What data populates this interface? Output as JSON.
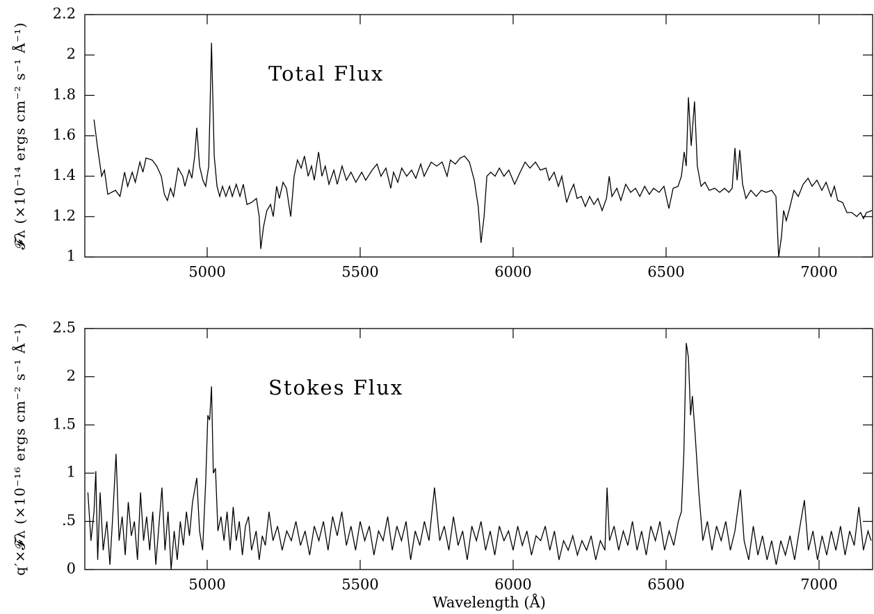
{
  "chart_data": [
    {
      "type": "line",
      "annotation": "Total Flux",
      "ylabel": "𝓕λ (×10⁻¹⁴ ergs cm⁻² s⁻¹ Å⁻¹)",
      "xlim": [
        4600,
        7175
      ],
      "xticks": [
        5000,
        5500,
        6000,
        6500,
        7000
      ],
      "ylim": [
        1,
        2.2
      ],
      "yticks": [
        1,
        1.2,
        1.4,
        1.6,
        1.8,
        2,
        2.2
      ],
      "color": "#000000",
      "x": [
        4630,
        4641,
        4655,
        4664,
        4675,
        4700,
        4715,
        4730,
        4740,
        4755,
        4765,
        4780,
        4790,
        4800,
        4820,
        4835,
        4850,
        4860,
        4870,
        4880,
        4890,
        4905,
        4920,
        4927,
        4941,
        4950,
        4959,
        4966,
        4975,
        4986,
        4995,
        5005,
        5014,
        5023,
        5032,
        5041,
        5050,
        5061,
        5073,
        5082,
        5095,
        5107,
        5118,
        5130,
        5145,
        5161,
        5170,
        5175,
        5184,
        5195,
        5207,
        5216,
        5227,
        5236,
        5248,
        5259,
        5273,
        5284,
        5295,
        5307,
        5318,
        5330,
        5341,
        5350,
        5364,
        5375,
        5386,
        5398,
        5414,
        5425,
        5441,
        5455,
        5470,
        5486,
        5505,
        5518,
        5539,
        5555,
        5568,
        5584,
        5600,
        5609,
        5623,
        5636,
        5652,
        5668,
        5682,
        5698,
        5709,
        5732,
        5750,
        5768,
        5784,
        5795,
        5811,
        5827,
        5841,
        5857,
        5873,
        5886,
        5895,
        5905,
        5914,
        5927,
        5941,
        5955,
        5970,
        5986,
        6005,
        6023,
        6039,
        6055,
        6073,
        6089,
        6107,
        6118,
        6134,
        6148,
        6159,
        6175,
        6186,
        6198,
        6209,
        6223,
        6236,
        6250,
        6264,
        6277,
        6291,
        6305,
        6314,
        6323,
        6339,
        6352,
        6368,
        6384,
        6400,
        6414,
        6430,
        6445,
        6459,
        6477,
        6493,
        6509,
        6523,
        6539,
        6550,
        6559,
        6566,
        6573,
        6582,
        6593,
        6602,
        6614,
        6627,
        6641,
        6659,
        6675,
        6691,
        6705,
        6716,
        6725,
        6732,
        6741,
        6750,
        6761,
        6777,
        6795,
        6811,
        6827,
        6845,
        6859,
        6868,
        6877,
        6884,
        6893,
        6905,
        6918,
        6932,
        6948,
        6964,
        6977,
        6993,
        7009,
        7023,
        7039,
        7050,
        7061,
        7077,
        7091,
        7107,
        7123,
        7136,
        7145,
        7155,
        7173
      ],
      "values": [
        1.68,
        1.55,
        1.4,
        1.43,
        1.31,
        1.33,
        1.3,
        1.42,
        1.35,
        1.42,
        1.37,
        1.47,
        1.42,
        1.49,
        1.48,
        1.45,
        1.4,
        1.31,
        1.28,
        1.34,
        1.3,
        1.44,
        1.4,
        1.35,
        1.43,
        1.39,
        1.5,
        1.64,
        1.45,
        1.38,
        1.35,
        1.45,
        2.06,
        1.5,
        1.35,
        1.3,
        1.35,
        1.3,
        1.35,
        1.3,
        1.36,
        1.3,
        1.36,
        1.26,
        1.27,
        1.29,
        1.2,
        1.04,
        1.15,
        1.23,
        1.26,
        1.2,
        1.35,
        1.29,
        1.37,
        1.34,
        1.2,
        1.4,
        1.48,
        1.44,
        1.5,
        1.4,
        1.45,
        1.38,
        1.52,
        1.4,
        1.45,
        1.36,
        1.43,
        1.36,
        1.45,
        1.38,
        1.42,
        1.37,
        1.42,
        1.38,
        1.43,
        1.46,
        1.4,
        1.44,
        1.34,
        1.42,
        1.37,
        1.44,
        1.4,
        1.43,
        1.39,
        1.46,
        1.4,
        1.47,
        1.45,
        1.47,
        1.4,
        1.48,
        1.46,
        1.49,
        1.5,
        1.47,
        1.38,
        1.25,
        1.07,
        1.2,
        1.4,
        1.42,
        1.4,
        1.44,
        1.4,
        1.43,
        1.36,
        1.42,
        1.47,
        1.44,
        1.47,
        1.43,
        1.44,
        1.38,
        1.42,
        1.35,
        1.4,
        1.27,
        1.32,
        1.36,
        1.29,
        1.3,
        1.25,
        1.3,
        1.26,
        1.29,
        1.23,
        1.29,
        1.4,
        1.3,
        1.34,
        1.28,
        1.36,
        1.32,
        1.34,
        1.3,
        1.35,
        1.31,
        1.34,
        1.32,
        1.35,
        1.24,
        1.34,
        1.35,
        1.4,
        1.52,
        1.45,
        1.79,
        1.55,
        1.77,
        1.45,
        1.35,
        1.37,
        1.33,
        1.34,
        1.32,
        1.34,
        1.32,
        1.34,
        1.54,
        1.38,
        1.53,
        1.36,
        1.29,
        1.33,
        1.3,
        1.33,
        1.32,
        1.33,
        1.3,
        1.0,
        1.1,
        1.23,
        1.18,
        1.25,
        1.33,
        1.3,
        1.36,
        1.39,
        1.35,
        1.38,
        1.33,
        1.37,
        1.3,
        1.35,
        1.28,
        1.27,
        1.22,
        1.22,
        1.2,
        1.22,
        1.19,
        1.22,
        1.23
      ]
    },
    {
      "type": "line",
      "annotation": "Stokes Flux",
      "ylabel": "q′×𝓕λ (×10⁻¹⁶ ergs cm⁻² s⁻¹ Å⁻¹)",
      "xlabel": "Wavelength (Å)",
      "xlim": [
        4600,
        7175
      ],
      "xticks": [
        5000,
        5500,
        6000,
        6500,
        7000
      ],
      "ylim": [
        0,
        2.5
      ],
      "yticks": [
        0,
        {
          "value": 0.5,
          "label": ".5"
        },
        1,
        1.5,
        2,
        2.5
      ],
      "color": "#000000",
      "x": [
        4610,
        4620,
        4630,
        4636,
        4642,
        4650,
        4660,
        4672,
        4682,
        4692,
        4702,
        4712,
        4722,
        4732,
        4742,
        4752,
        4762,
        4772,
        4782,
        4792,
        4802,
        4812,
        4822,
        4832,
        4842,
        4852,
        4862,
        4872,
        4882,
        4892,
        4902,
        4912,
        4922,
        4932,
        4942,
        4952,
        4966,
        4975,
        4985,
        4995,
        5002,
        5008,
        5014,
        5020,
        5027,
        5035,
        5045,
        5055,
        5065,
        5075,
        5085,
        5095,
        5105,
        5115,
        5125,
        5135,
        5145,
        5160,
        5170,
        5180,
        5190,
        5202,
        5215,
        5230,
        5245,
        5260,
        5275,
        5290,
        5305,
        5320,
        5335,
        5350,
        5365,
        5380,
        5395,
        5410,
        5425,
        5440,
        5455,
        5470,
        5485,
        5500,
        5515,
        5530,
        5545,
        5560,
        5575,
        5590,
        5605,
        5620,
        5635,
        5650,
        5665,
        5680,
        5695,
        5710,
        5725,
        5743,
        5760,
        5775,
        5790,
        5805,
        5820,
        5835,
        5850,
        5865,
        5880,
        5895,
        5910,
        5925,
        5940,
        5955,
        5970,
        5985,
        6000,
        6015,
        6030,
        6045,
        6060,
        6075,
        6090,
        6105,
        6120,
        6135,
        6150,
        6165,
        6180,
        6195,
        6210,
        6225,
        6240,
        6255,
        6270,
        6285,
        6300,
        6307,
        6315,
        6330,
        6345,
        6360,
        6375,
        6390,
        6405,
        6420,
        6435,
        6450,
        6465,
        6480,
        6495,
        6510,
        6525,
        6540,
        6550,
        6558,
        6566,
        6573,
        6580,
        6586,
        6595,
        6607,
        6620,
        6635,
        6650,
        6665,
        6680,
        6695,
        6710,
        6725,
        6743,
        6755,
        6770,
        6785,
        6800,
        6815,
        6830,
        6845,
        6860,
        6875,
        6890,
        6905,
        6920,
        6935,
        6952,
        6965,
        6980,
        6995,
        7010,
        7025,
        7040,
        7055,
        7070,
        7085,
        7100,
        7115,
        7130,
        7145,
        7160,
        7170
      ],
      "values": [
        0.8,
        0.3,
        0.6,
        1.02,
        0.1,
        0.8,
        0.2,
        0.5,
        0.05,
        0.6,
        1.2,
        0.3,
        0.55,
        0.15,
        0.7,
        0.35,
        0.5,
        0.1,
        0.8,
        0.3,
        0.55,
        0.2,
        0.6,
        0.05,
        0.45,
        0.85,
        0.2,
        0.6,
        0,
        0.4,
        0.1,
        0.5,
        0.25,
        0.6,
        0.35,
        0.7,
        0.95,
        0.4,
        0.2,
        0.9,
        1.6,
        1.55,
        1.9,
        1.0,
        1.05,
        0.4,
        0.55,
        0.3,
        0.6,
        0.2,
        0.65,
        0.3,
        0.5,
        0.15,
        0.45,
        0.55,
        0.2,
        0.4,
        0.1,
        0.35,
        0.25,
        0.6,
        0.3,
        0.45,
        0.2,
        0.4,
        0.3,
        0.5,
        0.25,
        0.4,
        0.15,
        0.45,
        0.3,
        0.5,
        0.2,
        0.55,
        0.35,
        0.6,
        0.25,
        0.45,
        0.2,
        0.5,
        0.3,
        0.45,
        0.15,
        0.4,
        0.3,
        0.55,
        0.2,
        0.45,
        0.3,
        0.5,
        0.1,
        0.4,
        0.25,
        0.5,
        0.3,
        0.85,
        0.3,
        0.45,
        0.2,
        0.55,
        0.25,
        0.4,
        0.1,
        0.45,
        0.3,
        0.5,
        0.2,
        0.4,
        0.15,
        0.45,
        0.3,
        0.4,
        0.2,
        0.45,
        0.25,
        0.4,
        0.15,
        0.35,
        0.3,
        0.45,
        0.2,
        0.4,
        0.1,
        0.3,
        0.2,
        0.35,
        0.15,
        0.3,
        0.2,
        0.35,
        0.1,
        0.3,
        0.2,
        0.85,
        0.3,
        0.45,
        0.2,
        0.4,
        0.25,
        0.5,
        0.2,
        0.4,
        0.15,
        0.45,
        0.3,
        0.5,
        0.2,
        0.4,
        0.25,
        0.5,
        0.6,
        1.2,
        2.35,
        2.2,
        1.6,
        1.8,
        1.4,
        0.8,
        0.3,
        0.5,
        0.2,
        0.45,
        0.3,
        0.5,
        0.2,
        0.4,
        0.83,
        0.3,
        0.1,
        0.45,
        0.15,
        0.35,
        0.1,
        0.3,
        0.05,
        0.3,
        0.15,
        0.35,
        0.1,
        0.4,
        0.72,
        0.2,
        0.4,
        0.1,
        0.35,
        0.15,
        0.4,
        0.2,
        0.45,
        0.15,
        0.4,
        0.25,
        0.65,
        0.2,
        0.4,
        0.3
      ]
    }
  ]
}
